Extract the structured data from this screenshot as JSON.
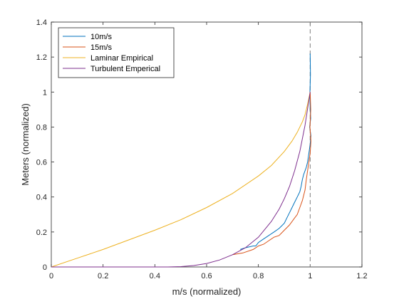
{
  "chart_data": {
    "type": "line",
    "title": "",
    "xlabel": "m/s (normalized)",
    "ylabel": "Meters (normalized)",
    "xlim": [
      0,
      1.2
    ],
    "ylim": [
      0,
      1.4
    ],
    "xticks": [
      0,
      0.2,
      0.4,
      0.6,
      0.8,
      1,
      1.2
    ],
    "xtick_labels": [
      "0",
      "0.2",
      "0.4",
      "0.6",
      "0.8",
      "1",
      "1.2"
    ],
    "yticks": [
      0,
      0.2,
      0.4,
      0.6,
      0.8,
      1,
      1.2,
      1.4
    ],
    "ytick_labels": [
      "0",
      "0.2",
      "0.4",
      "0.6",
      "0.8",
      "1",
      "1.2",
      "1.4"
    ],
    "grid": false,
    "legend_position": "top-left",
    "reference_line": {
      "orientation": "vertical",
      "x": 1,
      "style": "dashed",
      "color": "#808080"
    },
    "series": [
      {
        "name": "10m/s",
        "color": "#0072BD",
        "x": [
          0.73,
          0.75,
          0.78,
          0.79,
          0.8,
          0.82,
          0.84,
          0.86,
          0.88,
          0.9,
          0.91,
          0.92,
          0.93,
          0.94,
          0.95,
          0.96,
          0.965,
          0.97,
          0.975,
          0.98,
          0.985,
          0.99,
          0.995,
          1.0,
          1.003,
          0.998,
          1.002,
          1.0,
          0.999,
          1.001,
          1.0
        ],
        "y": [
          0.1,
          0.11,
          0.12,
          0.12,
          0.14,
          0.16,
          0.18,
          0.2,
          0.22,
          0.25,
          0.28,
          0.31,
          0.34,
          0.37,
          0.4,
          0.43,
          0.46,
          0.5,
          0.53,
          0.55,
          0.57,
          0.6,
          0.65,
          0.7,
          0.75,
          0.8,
          0.85,
          0.9,
          1.0,
          1.1,
          1.22
        ]
      },
      {
        "name": "15m/s",
        "color": "#D95319",
        "x": [
          0.7,
          0.74,
          0.78,
          0.8,
          0.82,
          0.84,
          0.86,
          0.88,
          0.9,
          0.92,
          0.94,
          0.95,
          0.96,
          0.97,
          0.98,
          0.985,
          0.99,
          0.995,
          1.0,
          1.003,
          0.999,
          1.002,
          1.0
        ],
        "y": [
          0.07,
          0.08,
          0.1,
          0.12,
          0.13,
          0.15,
          0.17,
          0.18,
          0.21,
          0.24,
          0.28,
          0.3,
          0.34,
          0.38,
          0.44,
          0.5,
          0.55,
          0.6,
          0.65,
          0.72,
          0.8,
          0.9,
          1.0
        ]
      },
      {
        "name": "Laminar Empirical",
        "color": "#EDB120",
        "x": [
          0.0,
          0.1,
          0.2,
          0.3,
          0.4,
          0.5,
          0.6,
          0.7,
          0.8,
          0.85,
          0.9,
          0.93,
          0.95,
          0.97,
          0.98,
          0.99,
          1.0
        ],
        "y": [
          0.0,
          0.05,
          0.1,
          0.155,
          0.21,
          0.27,
          0.34,
          0.42,
          0.52,
          0.58,
          0.66,
          0.72,
          0.77,
          0.83,
          0.87,
          0.93,
          1.0
        ]
      },
      {
        "name": "Turbulent Emperical",
        "color": "#7E2F8E",
        "x": [
          0.0,
          0.2,
          0.4,
          0.45,
          0.5,
          0.55,
          0.6,
          0.65,
          0.7,
          0.75,
          0.8,
          0.85,
          0.88,
          0.9,
          0.92,
          0.94,
          0.96,
          0.98,
          1.0
        ],
        "y": [
          0.0,
          0.0,
          0.0,
          0.0,
          0.002,
          0.008,
          0.02,
          0.04,
          0.07,
          0.11,
          0.17,
          0.26,
          0.33,
          0.39,
          0.46,
          0.55,
          0.66,
          0.81,
          1.0
        ]
      }
    ]
  }
}
